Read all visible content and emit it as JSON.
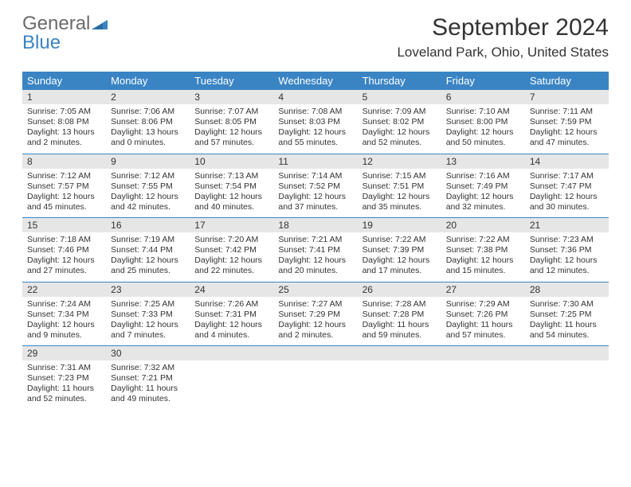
{
  "logo": {
    "text_gray": "General",
    "text_blue": "Blue"
  },
  "title": "September 2024",
  "location": "Loveland Park, Ohio, United States",
  "colors": {
    "header_bg": "#3a84c4",
    "header_text": "#ffffff",
    "daynum_bg": "#e6e6e6",
    "text": "#333333",
    "divider": "#3a84c4",
    "logo_gray": "#6b6b6b",
    "logo_blue": "#3a84c4"
  },
  "day_headers": [
    "Sunday",
    "Monday",
    "Tuesday",
    "Wednesday",
    "Thursday",
    "Friday",
    "Saturday"
  ],
  "weeks": [
    [
      {
        "num": "1",
        "sunrise": "Sunrise: 7:05 AM",
        "sunset": "Sunset: 8:08 PM",
        "daylight": "Daylight: 13 hours and 2 minutes."
      },
      {
        "num": "2",
        "sunrise": "Sunrise: 7:06 AM",
        "sunset": "Sunset: 8:06 PM",
        "daylight": "Daylight: 13 hours and 0 minutes."
      },
      {
        "num": "3",
        "sunrise": "Sunrise: 7:07 AM",
        "sunset": "Sunset: 8:05 PM",
        "daylight": "Daylight: 12 hours and 57 minutes."
      },
      {
        "num": "4",
        "sunrise": "Sunrise: 7:08 AM",
        "sunset": "Sunset: 8:03 PM",
        "daylight": "Daylight: 12 hours and 55 minutes."
      },
      {
        "num": "5",
        "sunrise": "Sunrise: 7:09 AM",
        "sunset": "Sunset: 8:02 PM",
        "daylight": "Daylight: 12 hours and 52 minutes."
      },
      {
        "num": "6",
        "sunrise": "Sunrise: 7:10 AM",
        "sunset": "Sunset: 8:00 PM",
        "daylight": "Daylight: 12 hours and 50 minutes."
      },
      {
        "num": "7",
        "sunrise": "Sunrise: 7:11 AM",
        "sunset": "Sunset: 7:59 PM",
        "daylight": "Daylight: 12 hours and 47 minutes."
      }
    ],
    [
      {
        "num": "8",
        "sunrise": "Sunrise: 7:12 AM",
        "sunset": "Sunset: 7:57 PM",
        "daylight": "Daylight: 12 hours and 45 minutes."
      },
      {
        "num": "9",
        "sunrise": "Sunrise: 7:12 AM",
        "sunset": "Sunset: 7:55 PM",
        "daylight": "Daylight: 12 hours and 42 minutes."
      },
      {
        "num": "10",
        "sunrise": "Sunrise: 7:13 AM",
        "sunset": "Sunset: 7:54 PM",
        "daylight": "Daylight: 12 hours and 40 minutes."
      },
      {
        "num": "11",
        "sunrise": "Sunrise: 7:14 AM",
        "sunset": "Sunset: 7:52 PM",
        "daylight": "Daylight: 12 hours and 37 minutes."
      },
      {
        "num": "12",
        "sunrise": "Sunrise: 7:15 AM",
        "sunset": "Sunset: 7:51 PM",
        "daylight": "Daylight: 12 hours and 35 minutes."
      },
      {
        "num": "13",
        "sunrise": "Sunrise: 7:16 AM",
        "sunset": "Sunset: 7:49 PM",
        "daylight": "Daylight: 12 hours and 32 minutes."
      },
      {
        "num": "14",
        "sunrise": "Sunrise: 7:17 AM",
        "sunset": "Sunset: 7:47 PM",
        "daylight": "Daylight: 12 hours and 30 minutes."
      }
    ],
    [
      {
        "num": "15",
        "sunrise": "Sunrise: 7:18 AM",
        "sunset": "Sunset: 7:46 PM",
        "daylight": "Daylight: 12 hours and 27 minutes."
      },
      {
        "num": "16",
        "sunrise": "Sunrise: 7:19 AM",
        "sunset": "Sunset: 7:44 PM",
        "daylight": "Daylight: 12 hours and 25 minutes."
      },
      {
        "num": "17",
        "sunrise": "Sunrise: 7:20 AM",
        "sunset": "Sunset: 7:42 PM",
        "daylight": "Daylight: 12 hours and 22 minutes."
      },
      {
        "num": "18",
        "sunrise": "Sunrise: 7:21 AM",
        "sunset": "Sunset: 7:41 PM",
        "daylight": "Daylight: 12 hours and 20 minutes."
      },
      {
        "num": "19",
        "sunrise": "Sunrise: 7:22 AM",
        "sunset": "Sunset: 7:39 PM",
        "daylight": "Daylight: 12 hours and 17 minutes."
      },
      {
        "num": "20",
        "sunrise": "Sunrise: 7:22 AM",
        "sunset": "Sunset: 7:38 PM",
        "daylight": "Daylight: 12 hours and 15 minutes."
      },
      {
        "num": "21",
        "sunrise": "Sunrise: 7:23 AM",
        "sunset": "Sunset: 7:36 PM",
        "daylight": "Daylight: 12 hours and 12 minutes."
      }
    ],
    [
      {
        "num": "22",
        "sunrise": "Sunrise: 7:24 AM",
        "sunset": "Sunset: 7:34 PM",
        "daylight": "Daylight: 12 hours and 9 minutes."
      },
      {
        "num": "23",
        "sunrise": "Sunrise: 7:25 AM",
        "sunset": "Sunset: 7:33 PM",
        "daylight": "Daylight: 12 hours and 7 minutes."
      },
      {
        "num": "24",
        "sunrise": "Sunrise: 7:26 AM",
        "sunset": "Sunset: 7:31 PM",
        "daylight": "Daylight: 12 hours and 4 minutes."
      },
      {
        "num": "25",
        "sunrise": "Sunrise: 7:27 AM",
        "sunset": "Sunset: 7:29 PM",
        "daylight": "Daylight: 12 hours and 2 minutes."
      },
      {
        "num": "26",
        "sunrise": "Sunrise: 7:28 AM",
        "sunset": "Sunset: 7:28 PM",
        "daylight": "Daylight: 11 hours and 59 minutes."
      },
      {
        "num": "27",
        "sunrise": "Sunrise: 7:29 AM",
        "sunset": "Sunset: 7:26 PM",
        "daylight": "Daylight: 11 hours and 57 minutes."
      },
      {
        "num": "28",
        "sunrise": "Sunrise: 7:30 AM",
        "sunset": "Sunset: 7:25 PM",
        "daylight": "Daylight: 11 hours and 54 minutes."
      }
    ],
    [
      {
        "num": "29",
        "sunrise": "Sunrise: 7:31 AM",
        "sunset": "Sunset: 7:23 PM",
        "daylight": "Daylight: 11 hours and 52 minutes."
      },
      {
        "num": "30",
        "sunrise": "Sunrise: 7:32 AM",
        "sunset": "Sunset: 7:21 PM",
        "daylight": "Daylight: 11 hours and 49 minutes."
      },
      {
        "num": "",
        "sunrise": "",
        "sunset": "",
        "daylight": ""
      },
      {
        "num": "",
        "sunrise": "",
        "sunset": "",
        "daylight": ""
      },
      {
        "num": "",
        "sunrise": "",
        "sunset": "",
        "daylight": ""
      },
      {
        "num": "",
        "sunrise": "",
        "sunset": "",
        "daylight": ""
      },
      {
        "num": "",
        "sunrise": "",
        "sunset": "",
        "daylight": ""
      }
    ]
  ]
}
